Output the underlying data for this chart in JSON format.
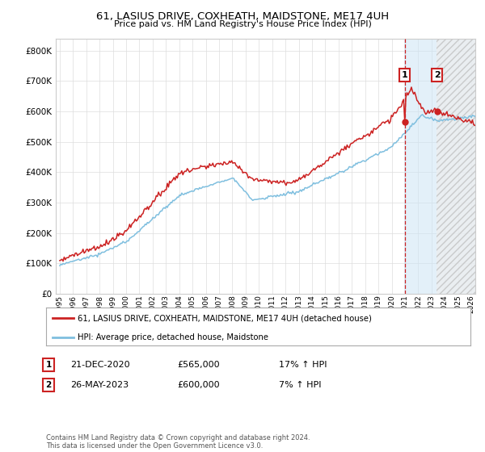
{
  "title": "61, LASIUS DRIVE, COXHEATH, MAIDSTONE, ME17 4UH",
  "subtitle": "Price paid vs. HM Land Registry's House Price Index (HPI)",
  "yticks": [
    0,
    100000,
    200000,
    300000,
    400000,
    500000,
    600000,
    700000,
    800000
  ],
  "ylim": [
    0,
    840000
  ],
  "xlim_left": 1994.7,
  "xlim_right": 2026.3,
  "hpi_color": "#7fbfdf",
  "price_color": "#cc2222",
  "marker1_year": 2020.97,
  "marker2_year": 2023.38,
  "future_start_year": 2023.38,
  "shade_start_year": 2020.97,
  "shade_end_year": 2026.3,
  "annotation1": [
    "1",
    "21-DEC-2020",
    "£565,000",
    "17% ↑ HPI"
  ],
  "annotation2": [
    "2",
    "26-MAY-2023",
    "£600,000",
    "7% ↑ HPI"
  ],
  "legend1": "61, LASIUS DRIVE, COXHEATH, MAIDSTONE, ME17 4UH (detached house)",
  "legend2": "HPI: Average price, detached house, Maidstone",
  "footnote": "Contains HM Land Registry data © Crown copyright and database right 2024.\nThis data is licensed under the Open Government Licence v3.0.",
  "sale1_price": 565000,
  "sale2_price": 600000
}
